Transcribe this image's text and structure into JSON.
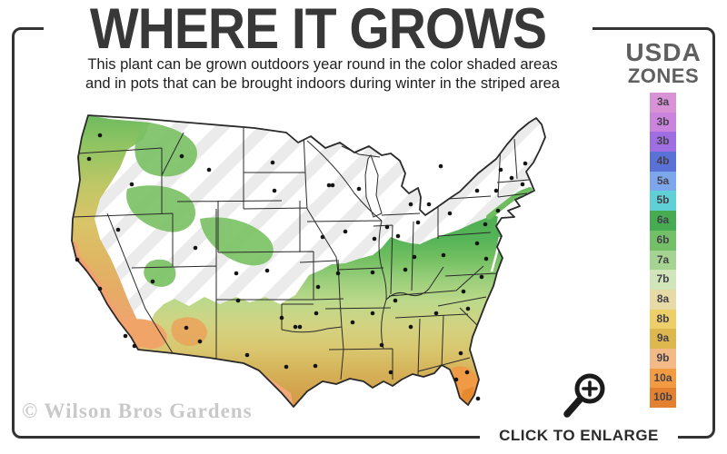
{
  "title": "WHERE IT GROWS",
  "subtitle": {
    "line1": "This plant can be grown outdoors year round in the color shaded areas",
    "line2": "and in pots that can be brought indoors during winter in the striped area"
  },
  "legend": {
    "heading_top": "USDA",
    "heading_bottom": "ZONES",
    "zones": [
      {
        "label": "3a",
        "color": "#d993d5"
      },
      {
        "label": "3b",
        "color": "#cb84dd"
      },
      {
        "label": "3b",
        "color": "#a06ee3"
      },
      {
        "label": "4b",
        "color": "#5a71d8"
      },
      {
        "label": "5a",
        "color": "#7da7ec"
      },
      {
        "label": "5b",
        "color": "#5fd0d6"
      },
      {
        "label": "6a",
        "color": "#46ab51"
      },
      {
        "label": "6b",
        "color": "#74c068"
      },
      {
        "label": "7a",
        "color": "#a5d492"
      },
      {
        "label": "7b",
        "color": "#d0e6ba"
      },
      {
        "label": "8a",
        "color": "#e6dba6"
      },
      {
        "label": "8b",
        "color": "#eccf68"
      },
      {
        "label": "9a",
        "color": "#ddb84e"
      },
      {
        "label": "9b",
        "color": "#f3ba88"
      },
      {
        "label": "10a",
        "color": "#f39b42"
      },
      {
        "label": "10b",
        "color": "#e28230"
      }
    ]
  },
  "map": {
    "stripe_color": "#ebebeb",
    "state_line_color": "#2a2a2a",
    "outline_color": "#2a2a2a",
    "city_dot_color": "#141414",
    "band_colors": [
      "#4fae52",
      "#72bf61",
      "#9ccf7c",
      "#c3db8e",
      "#d7d383",
      "#dcc46e",
      "#d7b158",
      "#dd9544",
      "#f0a474",
      "#f09a45"
    ]
  },
  "watermark": "© Wilson Bros Gardens",
  "enlarge": {
    "label": "CLICK TO ENLARGE"
  },
  "frame_color": "#333333"
}
